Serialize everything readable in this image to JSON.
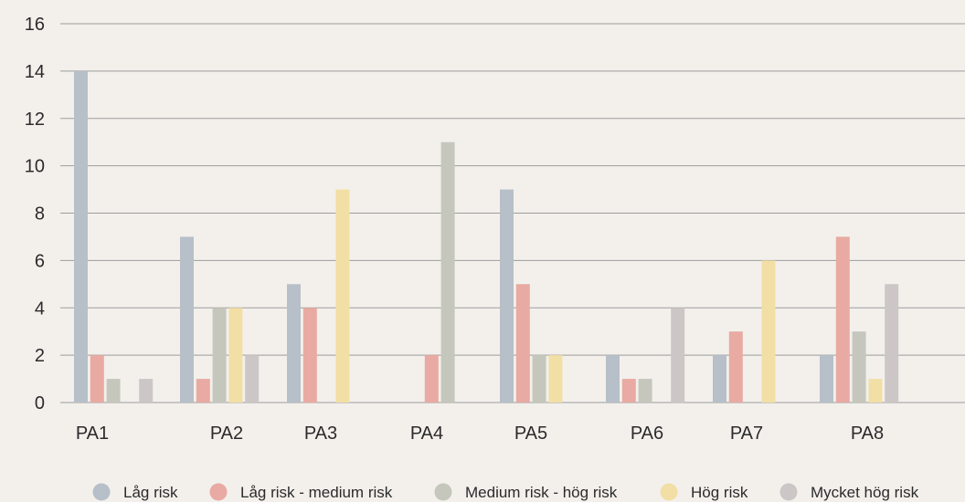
{
  "chart_data": {
    "type": "bar",
    "categories": [
      "PA1",
      "PA2",
      "PA3",
      "PA4",
      "PA5",
      "PA6",
      "PA7",
      "PA8"
    ],
    "series": [
      {
        "name": "Låg risk",
        "color": "#b7bfc8",
        "values": [
          14,
          7,
          5,
          0,
          9,
          2,
          2,
          2
        ]
      },
      {
        "name": "Låg risk - medium risk",
        "color": "#e8aaa2",
        "values": [
          2,
          1,
          4,
          2,
          5,
          1,
          3,
          7
        ]
      },
      {
        "name": "Medium risk - hög risk",
        "color": "#c5c7bd",
        "values": [
          1,
          4,
          0,
          11,
          2,
          1,
          0,
          3
        ]
      },
      {
        "name": "Hög risk",
        "color": "#f2dfa5",
        "values": [
          0,
          4,
          9,
          0,
          2,
          0,
          6,
          1
        ]
      },
      {
        "name": "Mycket hög risk",
        "color": "#cdc6c6",
        "values": [
          1,
          2,
          0,
          0,
          0,
          4,
          0,
          5
        ]
      }
    ],
    "yticks": [
      "0",
      "2",
      "4",
      "6",
      "8",
      "10",
      "12",
      "14",
      "16"
    ],
    "ylim": [
      0,
      16
    ],
    "grid": true,
    "legend": "bottom",
    "title": "",
    "xlabel": "",
    "ylabel": ""
  }
}
